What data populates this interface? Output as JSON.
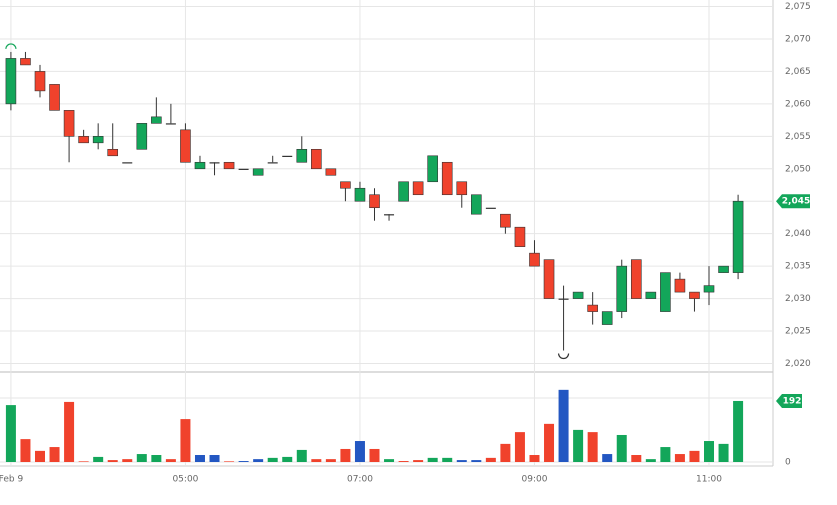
{
  "chart_data": {
    "type": "candlestick",
    "open": [
      2060,
      2067,
      2065,
      2063,
      2059,
      2055,
      2054,
      2053,
      2051,
      2053,
      2057,
      2057,
      2056,
      2050,
      2051,
      2051,
      2050,
      2049,
      2051,
      2052,
      2051,
      2053,
      2050,
      2048,
      2045,
      2046,
      2043,
      2045,
      2048,
      2048,
      2051,
      2048,
      2043,
      2044,
      2043,
      2041,
      2037,
      2036,
      2030,
      2030,
      2029,
      2026,
      2028,
      2036,
      2030,
      2028,
      2033,
      2031,
      2031,
      2034,
      2034
    ],
    "high": [
      2068,
      2068,
      2066,
      2063,
      2059,
      2056,
      2057,
      2057,
      2051,
      2057,
      2061,
      2060,
      2057,
      2052,
      2051,
      2051,
      2050,
      2050,
      2052,
      2052,
      2055,
      2053,
      2050,
      2048,
      2048,
      2047,
      2043,
      2048,
      2048,
      2052,
      2051,
      2048,
      2046,
      2044,
      2043,
      2041,
      2039,
      2036,
      2032,
      2031,
      2031,
      2028,
      2036,
      2036,
      2031,
      2034,
      2034,
      2031,
      2035,
      2035,
      2046
    ],
    "low": [
      2059,
      2066,
      2061,
      2059,
      2051,
      2054,
      2053,
      2052,
      2051,
      2053,
      2057,
      2057,
      2051,
      2050,
      2049,
      2050,
      2050,
      2049,
      2051,
      2052,
      2051,
      2050,
      2049,
      2045,
      2045,
      2042,
      2042,
      2045,
      2046,
      2048,
      2046,
      2044,
      2043,
      2044,
      2040,
      2038,
      2035,
      2030,
      2022,
      2030,
      2026,
      2026,
      2027,
      2030,
      2030,
      2028,
      2031,
      2028,
      2029,
      2034,
      2033
    ],
    "close": [
      2067,
      2066,
      2062,
      2059,
      2055,
      2054,
      2055,
      2052,
      2051,
      2057,
      2058,
      2057,
      2051,
      2051,
      2051,
      2050,
      2050,
      2050,
      2051,
      2052,
      2053,
      2050,
      2049,
      2047,
      2047,
      2044,
      2043,
      2048,
      2046,
      2052,
      2046,
      2046,
      2046,
      2044,
      2041,
      2038,
      2035,
      2030,
      2030,
      2031,
      2028,
      2028,
      2035,
      2030,
      2031,
      2034,
      2031,
      2030,
      2032,
      2035,
      2045
    ],
    "volume": [
      179,
      72,
      35,
      47,
      189,
      2,
      16,
      6,
      9,
      25,
      22,
      9,
      135,
      22,
      22,
      2,
      3,
      9,
      13,
      16,
      38,
      9,
      9,
      41,
      66,
      41,
      9,
      3,
      6,
      13,
      13,
      6,
      6,
      13,
      57,
      94,
      22,
      120,
      227,
      101,
      94,
      25,
      85,
      22,
      9,
      47,
      25,
      35,
      66,
      57,
      192
    ],
    "volume_direction": [
      "up",
      "down",
      "down",
      "down",
      "down",
      "down",
      "up",
      "down",
      "down",
      "up",
      "up",
      "down",
      "down",
      "flat",
      "flat",
      "down",
      "flat",
      "flat",
      "up",
      "up",
      "up",
      "down",
      "down",
      "down",
      "flat",
      "down",
      "up",
      "down",
      "down",
      "up",
      "up",
      "flat",
      "flat",
      "down",
      "down",
      "down",
      "down",
      "down",
      "flat",
      "up",
      "down",
      "flat",
      "up",
      "down",
      "up",
      "up",
      "down",
      "down",
      "up",
      "up",
      "up"
    ],
    "colors": {
      "up": "#13a65a",
      "down": "#f0422c",
      "flat": "#2357c2",
      "doji": "#333333"
    },
    "xlim": [
      -0.75,
      52.4
    ],
    "xticks": [
      {
        "value": 0,
        "label": "Feb 9"
      },
      {
        "value": 12,
        "label": "05:00"
      },
      {
        "value": 24,
        "label": "07:00"
      },
      {
        "value": 36,
        "label": "09:00"
      },
      {
        "value": 48,
        "label": "11:00"
      }
    ],
    "ylim": [
      2019,
      2076
    ],
    "yticks": [
      {
        "value": 2020,
        "label": "2,020"
      },
      {
        "value": 2025,
        "label": "2,025"
      },
      {
        "value": 2030,
        "label": "2,030"
      },
      {
        "value": 2035,
        "label": "2,035"
      },
      {
        "value": 2040,
        "label": "2,040"
      },
      {
        "value": 2045,
        "label": "2,045"
      },
      {
        "value": 2050,
        "label": "2,050"
      },
      {
        "value": 2055,
        "label": "2,055"
      },
      {
        "value": 2060,
        "label": "2,060"
      },
      {
        "value": 2065,
        "label": "2,065"
      },
      {
        "value": 2070,
        "label": "2,070"
      },
      {
        "value": 2075,
        "label": "2,075"
      }
    ],
    "volume_ylim": [
      0,
      280
    ],
    "volume_yticks": [
      0
    ],
    "price_tag": {
      "value": 2045,
      "label": "2,045"
    },
    "volume_tag": {
      "value": 192,
      "label": "192"
    },
    "grid": true
  }
}
